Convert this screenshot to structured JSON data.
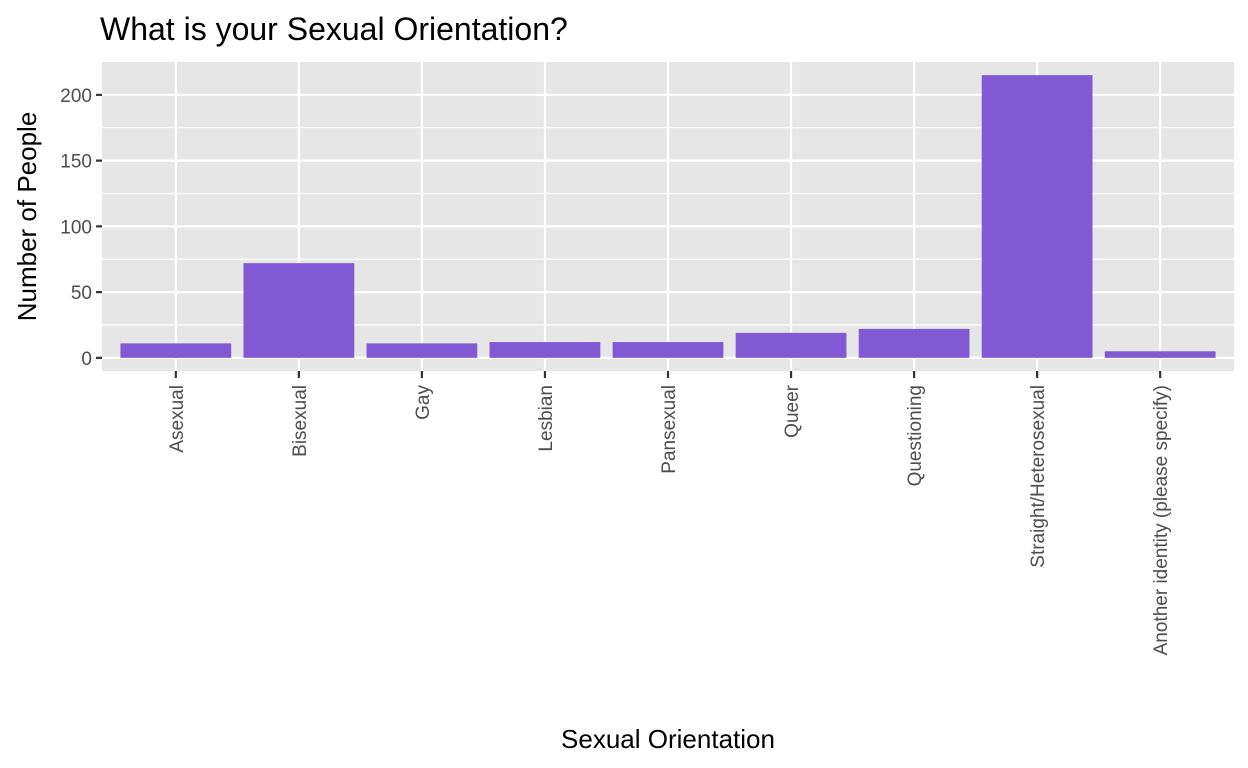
{
  "chart_data": {
    "type": "bar",
    "title": "What is your Sexual Orientation?",
    "xlabel": "Sexual Orientation",
    "ylabel": "Number of People",
    "categories": [
      "Asexual",
      "Bisexual",
      "Gay",
      "Lesbian",
      "Pansexual",
      "Queer",
      "Questioning",
      "Straight/Heterosexual",
      "Another identity (please specify)"
    ],
    "values": [
      11,
      72,
      11,
      12,
      12,
      19,
      22,
      215,
      5
    ],
    "ylim": [
      -10,
      225
    ],
    "yticks": [
      0,
      50,
      100,
      150,
      200
    ],
    "grid": true,
    "legend": "none",
    "colors": {
      "bar": "#8159d4",
      "panel": "#e6e6e6"
    }
  }
}
